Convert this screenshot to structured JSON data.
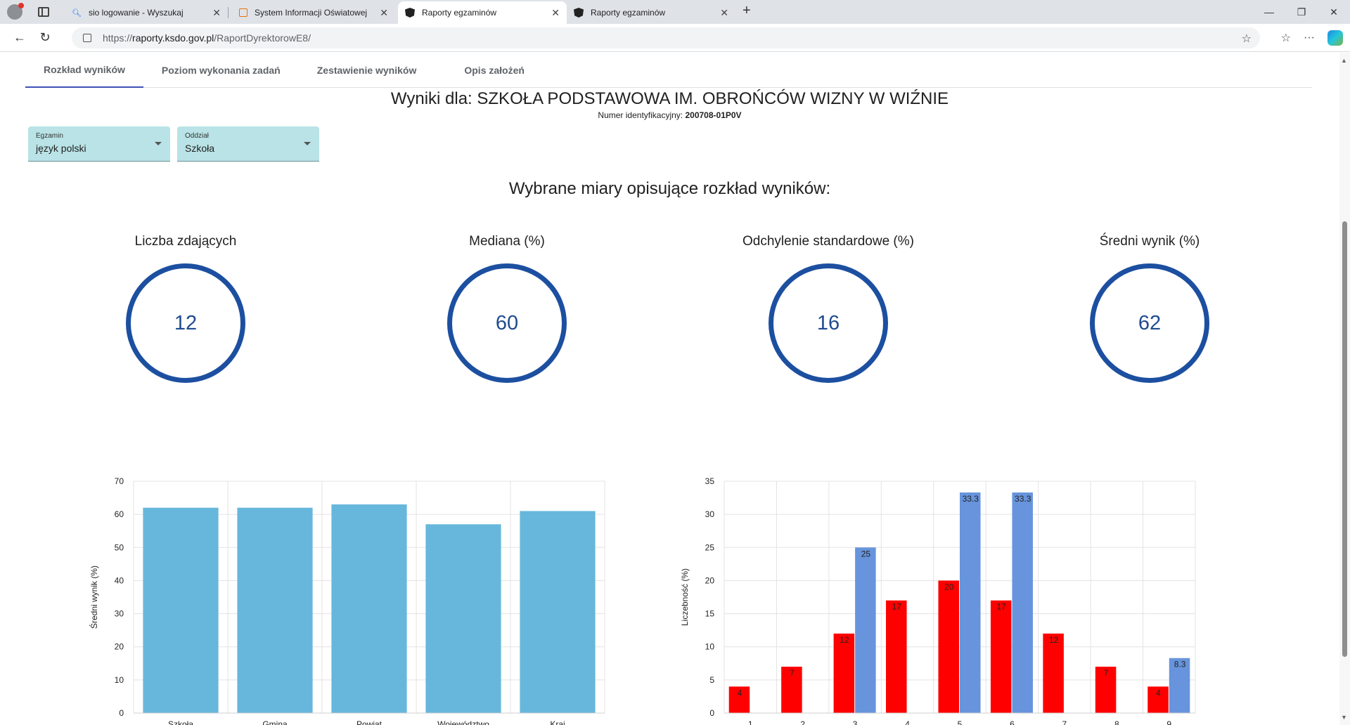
{
  "browser": {
    "tabs": [
      {
        "title": "sio logowanie - Wyszukaj",
        "icon": "search-icon"
      },
      {
        "title": "System Informacji Oświatowej",
        "icon": "book-icon"
      },
      {
        "title": "Raporty egzaminów",
        "icon": "angular-icon",
        "active": true
      },
      {
        "title": "Raporty egzaminów",
        "icon": "angular-icon"
      }
    ],
    "url_scheme": "https://",
    "url_host": "raporty.ksdo.gov.pl",
    "url_path": "/RaportDyrektorowE8/"
  },
  "nav": {
    "tabs": [
      "Rozkład wyników",
      "Poziom wykonania zadań",
      "Zestawienie wyników",
      "Opis założeń"
    ],
    "active": 0
  },
  "header": {
    "title": "Wyniki dla: SZKOŁA PODSTAWOWA IM. OBROŃCÓW WIZNY W WIŹNIE",
    "id_label": "Numer identyfikacyjny:",
    "id_value": "200708-01P0V"
  },
  "filters": {
    "exam": {
      "label": "Egzamin",
      "value": "język polski"
    },
    "branch": {
      "label": "Oddział",
      "value": "Szkoła"
    }
  },
  "measures": {
    "title": "Wybrane miary opisujące rozkład wyników:",
    "items": [
      {
        "label": "Liczba zdających",
        "value": "12"
      },
      {
        "label": "Mediana (%)",
        "value": "60"
      },
      {
        "label": "Odchylenie standardowe (%)",
        "value": "16"
      },
      {
        "label": "Średni wynik (%)",
        "value": "62"
      }
    ]
  },
  "chart_data": [
    {
      "type": "bar",
      "categories": [
        "Szkoła",
        "Gmina",
        "Powiat",
        "Województwo",
        "Kraj"
      ],
      "values": [
        62,
        62,
        63,
        57,
        61
      ],
      "ylabel": "Średni wynik (%)",
      "ylim": [
        0,
        70
      ],
      "yticks": [
        0,
        10,
        20,
        30,
        40,
        50,
        60,
        70
      ],
      "color": "#67b7dc",
      "grid": true
    },
    {
      "type": "bar",
      "categories": [
        "1",
        "2",
        "3",
        "4",
        "5",
        "6",
        "7",
        "8",
        "9"
      ],
      "series": [
        {
          "values": [
            4,
            7,
            12,
            17,
            20,
            17,
            12,
            7,
            4
          ],
          "color": "#ff0000"
        },
        {
          "values": [
            0,
            0,
            25,
            0,
            33.3,
            33.3,
            0,
            0,
            8.3
          ],
          "color": "#6794dc"
        }
      ],
      "data_labels": [
        [
          "4",
          "7",
          "12",
          "17",
          "20",
          "17",
          "12",
          "7",
          "4"
        ],
        [
          "",
          "",
          "25",
          "",
          "33.3",
          "33.3",
          "",
          "",
          "8.3"
        ]
      ],
      "ylabel": "Liczebność (%)",
      "ylim": [
        0,
        35
      ],
      "yticks": [
        0,
        5,
        10,
        15,
        20,
        25,
        30,
        35
      ],
      "grid": true
    }
  ]
}
